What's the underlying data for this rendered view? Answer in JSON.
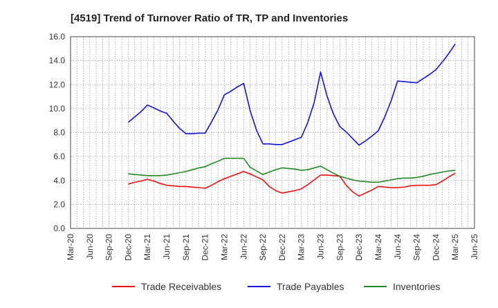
{
  "chart_data": {
    "type": "line",
    "title": "[4519]  Trend of Turnover Ratio of TR, TP and Inventories",
    "xlabel": "",
    "ylabel": "",
    "ylim": [
      0,
      16
    ],
    "yticks": [
      "0.0",
      "2.0",
      "4.0",
      "6.0",
      "8.0",
      "10.0",
      "12.0",
      "14.0",
      "16.0"
    ],
    "x_tick_labels": [
      "Mar-20",
      "Jun-20",
      "Sep-20",
      "Dec-20",
      "Mar-21",
      "Jun-21",
      "Sep-21",
      "Dec-21",
      "Mar-22",
      "Jun-22",
      "Sep-22",
      "Dec-22",
      "Mar-23",
      "Jun-23",
      "Sep-23",
      "Dec-23",
      "Mar-24",
      "Jun-24",
      "Sep-24",
      "Dec-24",
      "Mar-25",
      "Jun-25"
    ],
    "x": [
      "Dec-20",
      "Jan-21",
      "Feb-21",
      "Mar-21",
      "Apr-21",
      "May-21",
      "Jun-21",
      "Jul-21",
      "Aug-21",
      "Sep-21",
      "Oct-21",
      "Nov-21",
      "Dec-21",
      "Jan-22",
      "Feb-22",
      "Mar-22",
      "Apr-22",
      "May-22",
      "Jun-22",
      "Jul-22",
      "Aug-22",
      "Sep-22",
      "Oct-22",
      "Nov-22",
      "Dec-22",
      "Jan-23",
      "Feb-23",
      "Mar-23",
      "Apr-23",
      "May-23",
      "Jun-23",
      "Jul-23",
      "Aug-23",
      "Sep-23",
      "Oct-23",
      "Nov-23",
      "Dec-23",
      "Jan-24",
      "Feb-24",
      "Mar-24",
      "Apr-24",
      "May-24",
      "Jun-24",
      "Jul-24",
      "Aug-24",
      "Sep-24",
      "Oct-24",
      "Nov-24",
      "Dec-24",
      "Jan-25",
      "Feb-25",
      "Mar-25"
    ],
    "grid": true,
    "legend_position": "bottom",
    "series": [
      {
        "name": "Trade Receivables",
        "color": "#ee1111",
        "values": [
          3.7,
          3.85,
          3.95,
          4.1,
          3.95,
          3.75,
          3.6,
          3.55,
          3.5,
          3.5,
          3.45,
          3.4,
          3.35,
          3.6,
          3.9,
          4.15,
          4.35,
          4.55,
          4.75,
          4.55,
          4.3,
          4.05,
          3.5,
          3.15,
          2.95,
          3.05,
          3.15,
          3.3,
          3.65,
          4.05,
          4.45,
          4.45,
          4.4,
          4.35,
          3.6,
          3.05,
          2.7,
          2.95,
          3.2,
          3.5,
          3.45,
          3.4,
          3.4,
          3.45,
          3.55,
          3.6,
          3.6,
          3.6,
          3.65,
          3.95,
          4.3,
          4.6
        ]
      },
      {
        "name": "Trade Payables",
        "color": "#1111dd",
        "values": [
          8.85,
          9.3,
          9.75,
          10.3,
          10.05,
          9.8,
          9.6,
          8.95,
          8.35,
          7.9,
          7.9,
          7.95,
          7.95,
          8.9,
          9.9,
          11.15,
          11.45,
          11.8,
          12.1,
          9.85,
          8.2,
          7.05,
          7.05,
          7.0,
          7.0,
          7.2,
          7.4,
          7.6,
          8.85,
          10.5,
          13.05,
          11.05,
          9.55,
          8.5,
          8.05,
          7.5,
          6.95,
          7.3,
          7.7,
          8.15,
          9.3,
          10.65,
          12.3,
          12.25,
          12.2,
          12.15,
          12.5,
          12.85,
          13.25,
          13.9,
          14.6,
          15.4
        ]
      },
      {
        "name": "Inventories",
        "color": "#228822",
        "values": [
          4.55,
          4.5,
          4.45,
          4.4,
          4.4,
          4.4,
          4.45,
          4.55,
          4.65,
          4.75,
          4.9,
          5.05,
          5.15,
          5.4,
          5.6,
          5.85,
          5.85,
          5.85,
          5.85,
          5.1,
          4.8,
          4.5,
          4.7,
          4.9,
          5.05,
          5.0,
          4.95,
          4.85,
          4.9,
          5.05,
          5.2,
          4.9,
          4.6,
          4.35,
          4.2,
          4.05,
          3.95,
          3.9,
          3.85,
          3.85,
          3.95,
          4.05,
          4.15,
          4.2,
          4.2,
          4.25,
          4.35,
          4.5,
          4.6,
          4.7,
          4.8,
          4.85
        ]
      }
    ]
  }
}
